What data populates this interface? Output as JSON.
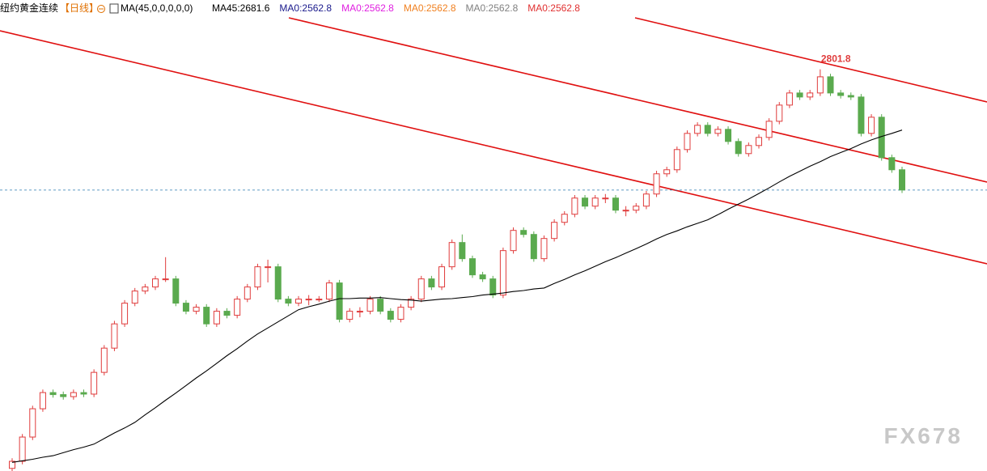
{
  "chart_data": {
    "type": "candlestick",
    "symbol": "纽约黄金连续",
    "period": "【日线】",
    "indicator": "MA(45,0,0,0,0,0)",
    "indicator_items": [
      {
        "text": "MA45:2681.6",
        "color": "#000000"
      },
      {
        "text": "MA0:2562.8",
        "color": "#1a1a8c"
      },
      {
        "text": "MA0:2562.8",
        "color": "#e020e0"
      },
      {
        "text": "MA0:2562.8",
        "color": "#f08020"
      },
      {
        "text": "MA0:2562.8",
        "color": "#808080"
      },
      {
        "text": "MA0:2562.8",
        "color": "#e03030"
      }
    ],
    "watermark": "FX678",
    "up_color": "#e03c3c",
    "down_color": "#5aaa4e",
    "ma_color": "#000000",
    "ylim": [
      2018,
      2939
    ],
    "price_line": 2562.8,
    "candles": [
      [
        2012,
        2032,
        2006,
        2026
      ],
      [
        2026,
        2080,
        2020,
        2074
      ],
      [
        2074,
        2136,
        2068,
        2130
      ],
      [
        2130,
        2168,
        2124,
        2162
      ],
      [
        2162,
        2168,
        2152,
        2158
      ],
      [
        2158,
        2164,
        2148,
        2154
      ],
      [
        2154,
        2168,
        2148,
        2162
      ],
      [
        2162,
        2168,
        2153,
        2159
      ],
      [
        2159,
        2208,
        2153,
        2202
      ],
      [
        2202,
        2256,
        2196,
        2250
      ],
      [
        2250,
        2304,
        2244,
        2298
      ],
      [
        2298,
        2345,
        2292,
        2339
      ],
      [
        2339,
        2369,
        2333,
        2363
      ],
      [
        2363,
        2377,
        2357,
        2371
      ],
      [
        2371,
        2393,
        2365,
        2387
      ],
      [
        2387,
        2430,
        2381,
        2387
      ],
      [
        2387,
        2393,
        2333,
        2339
      ],
      [
        2339,
        2345,
        2317,
        2323
      ],
      [
        2323,
        2337,
        2317,
        2331
      ],
      [
        2331,
        2337,
        2292,
        2298
      ],
      [
        2298,
        2329,
        2292,
        2323
      ],
      [
        2323,
        2329,
        2309,
        2315
      ],
      [
        2315,
        2353,
        2309,
        2347
      ],
      [
        2347,
        2377,
        2341,
        2371
      ],
      [
        2371,
        2417,
        2365,
        2411
      ],
      [
        2411,
        2425,
        2380,
        2411
      ],
      [
        2411,
        2417,
        2341,
        2347
      ],
      [
        2347,
        2353,
        2333,
        2339
      ],
      [
        2339,
        2353,
        2333,
        2347
      ],
      [
        2347,
        2355,
        2335,
        2347
      ],
      [
        2347,
        2353,
        2341,
        2347
      ],
      [
        2347,
        2385,
        2341,
        2379
      ],
      [
        2379,
        2385,
        2301,
        2307
      ],
      [
        2307,
        2329,
        2301,
        2323
      ],
      [
        2323,
        2331,
        2311,
        2323
      ],
      [
        2323,
        2353,
        2317,
        2347
      ],
      [
        2347,
        2353,
        2317,
        2323
      ],
      [
        2323,
        2329,
        2301,
        2307
      ],
      [
        2307,
        2337,
        2301,
        2331
      ],
      [
        2331,
        2353,
        2325,
        2347
      ],
      [
        2347,
        2393,
        2341,
        2387
      ],
      [
        2387,
        2393,
        2365,
        2371
      ],
      [
        2371,
        2417,
        2365,
        2411
      ],
      [
        2411,
        2465,
        2405,
        2459
      ],
      [
        2459,
        2475,
        2421,
        2427
      ],
      [
        2427,
        2433,
        2389,
        2395
      ],
      [
        2395,
        2401,
        2381,
        2387
      ],
      [
        2387,
        2393,
        2349,
        2355
      ],
      [
        2355,
        2449,
        2349,
        2443
      ],
      [
        2443,
        2489,
        2437,
        2483
      ],
      [
        2483,
        2489,
        2469,
        2475
      ],
      [
        2475,
        2481,
        2421,
        2427
      ],
      [
        2427,
        2473,
        2421,
        2467
      ],
      [
        2467,
        2505,
        2461,
        2499
      ],
      [
        2499,
        2521,
        2493,
        2515
      ],
      [
        2515,
        2553,
        2509,
        2547
      ],
      [
        2547,
        2553,
        2525,
        2531
      ],
      [
        2531,
        2553,
        2525,
        2547
      ],
      [
        2547,
        2555,
        2537,
        2547
      ],
      [
        2547,
        2553,
        2517,
        2523
      ],
      [
        2523,
        2531,
        2511,
        2523
      ],
      [
        2523,
        2537,
        2517,
        2531
      ],
      [
        2531,
        2561,
        2525,
        2555
      ],
      [
        2555,
        2601,
        2549,
        2595
      ],
      [
        2595,
        2609,
        2589,
        2603
      ],
      [
        2603,
        2649,
        2597,
        2643
      ],
      [
        2643,
        2681,
        2637,
        2675
      ],
      [
        2675,
        2697,
        2669,
        2691
      ],
      [
        2691,
        2697,
        2669,
        2675
      ],
      [
        2675,
        2689,
        2669,
        2683
      ],
      [
        2683,
        2689,
        2653,
        2659
      ],
      [
        2659,
        2665,
        2629,
        2635
      ],
      [
        2635,
        2657,
        2629,
        2651
      ],
      [
        2651,
        2673,
        2645,
        2667
      ],
      [
        2667,
        2705,
        2661,
        2699
      ],
      [
        2699,
        2737,
        2693,
        2731
      ],
      [
        2731,
        2761,
        2725,
        2755
      ],
      [
        2755,
        2761,
        2741,
        2747
      ],
      [
        2747,
        2761,
        2741,
        2755
      ],
      [
        2755,
        2801.8,
        2749,
        2787
      ],
      [
        2787,
        2793,
        2749,
        2755
      ],
      [
        2755,
        2761,
        2744,
        2750
      ],
      [
        2750,
        2756,
        2741,
        2747
      ],
      [
        2747,
        2753,
        2669,
        2675
      ],
      [
        2675,
        2713,
        2669,
        2707
      ],
      [
        2707,
        2713,
        2621,
        2627
      ],
      [
        2627,
        2633,
        2597,
        2603
      ],
      [
        2603,
        2609,
        2557,
        2563
      ]
    ],
    "ma45": [
      2024,
      2027,
      2030,
      2034,
      2037,
      2043,
      2049,
      2054,
      2060,
      2071,
      2082,
      2092,
      2103,
      2118,
      2132,
      2147,
      2161,
      2176,
      2191,
      2205,
      2220,
      2235,
      2249,
      2264,
      2278,
      2290,
      2302,
      2314,
      2326,
      2332,
      2337,
      2343,
      2348,
      2348,
      2349,
      2349,
      2350,
      2348,
      2346,
      2345,
      2343,
      2345,
      2347,
      2348,
      2350,
      2352,
      2355,
      2357,
      2359,
      2362,
      2364,
      2367,
      2369,
      2378,
      2386,
      2395,
      2403,
      2412,
      2421,
      2429,
      2438,
      2447,
      2456,
      2466,
      2475,
      2482,
      2490,
      2497,
      2504,
      2514,
      2525,
      2535,
      2545,
      2556,
      2567,
      2579,
      2590,
      2600,
      2610,
      2619,
      2629,
      2637,
      2645,
      2654,
      2662,
      2669,
      2675,
      2681.6
    ],
    "peak_label_index": 79
  }
}
